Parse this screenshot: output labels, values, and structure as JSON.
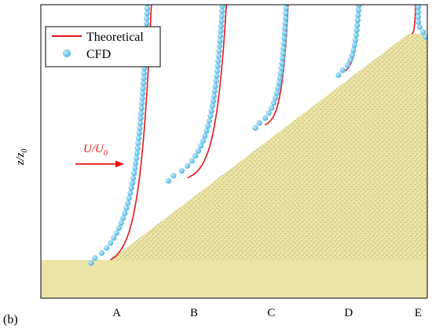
{
  "panel_label": "(b)",
  "chart_data": {
    "type": "line",
    "ylabel": "z/z",
    "ylabel_sub": "0",
    "flow_label": "U/U",
    "flow_label_sub": "0",
    "categories": [
      "A",
      "B",
      "C",
      "D",
      "E"
    ],
    "legend": {
      "placement": "top-left",
      "entries": [
        "Theoretical",
        "CFD"
      ]
    },
    "colors": {
      "theoretical": "#e8141b",
      "cfd": "#4fb6e4",
      "sand": "#ece5a8",
      "sand_speck": "#8a8540"
    },
    "grid": false,
    "terrain": {
      "ground_height": 0.13,
      "slope_start_x": 0.18,
      "peak_x": 0.95,
      "peak_height": 0.9,
      "peak_flat_until_x": 1.0
    },
    "profiles": [
      {
        "station": "A",
        "base_x": 0.18,
        "base_z": 0.13,
        "offset": 0.106,
        "cfd_deficit": 0.05
      },
      {
        "station": "B",
        "base_x": 0.38,
        "base_z": 0.41,
        "offset": 0.1,
        "cfd_deficit": 0.05
      },
      {
        "station": "C",
        "base_x": 0.58,
        "base_z": 0.59,
        "offset": 0.06,
        "cfd_deficit": 0.025
      },
      {
        "station": "D",
        "base_x": 0.78,
        "base_z": 0.77,
        "offset": 0.045,
        "cfd_deficit": 0.01
      },
      {
        "station": "E",
        "base_x": 0.96,
        "base_z": 0.9,
        "offset": 0.01,
        "cfd_deficit": -0.035
      }
    ]
  }
}
